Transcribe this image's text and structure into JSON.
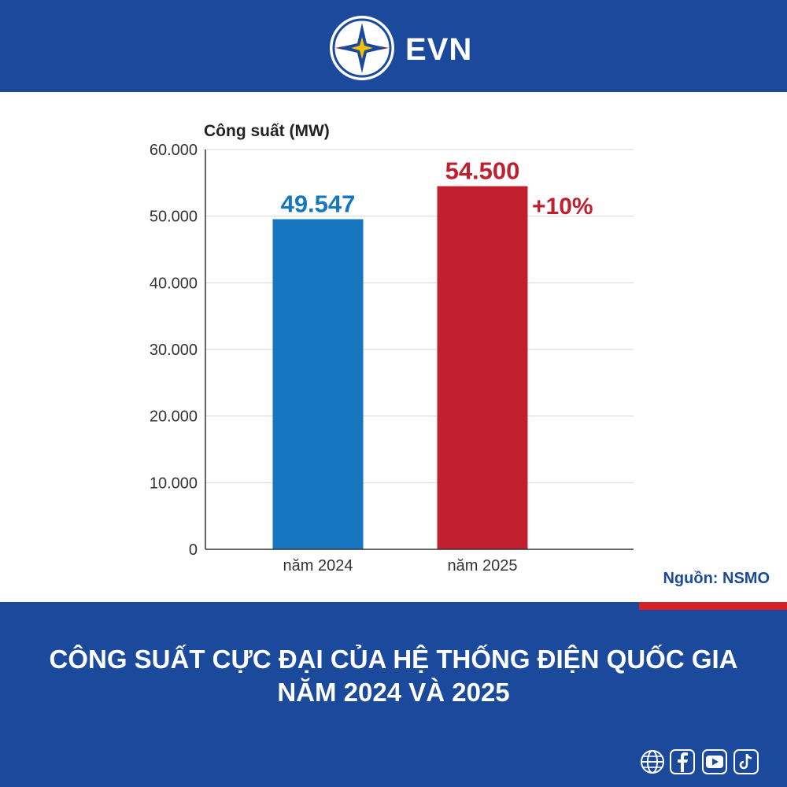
{
  "header": {
    "brand": "EVN"
  },
  "chart_data": {
    "type": "bar",
    "ylabel": "Công suất (MW)",
    "categories": [
      "năm 2024",
      "năm 2025"
    ],
    "values": [
      49547,
      54500
    ],
    "value_labels": [
      "49.547",
      "54.500"
    ],
    "colors": [
      "#1776c0",
      "#c01f2e"
    ],
    "annotation": "+10%",
    "ylim": [
      0,
      60000
    ],
    "yticks": [
      0,
      10000,
      20000,
      30000,
      40000,
      50000,
      60000
    ],
    "ytick_labels": [
      "0",
      "10.000",
      "20.000",
      "30.000",
      "40.000",
      "50.000",
      "60.000"
    ],
    "grid": true
  },
  "source": "Nguồn: NSMO",
  "title": {
    "line1": "CÔNG SUẤT CỰC ĐẠI CỦA HỆ THỐNG ĐIỆN QUỐC GIA",
    "line2": "NĂM 2024 VÀ 2025"
  },
  "social": [
    "globe-icon",
    "facebook-icon",
    "youtube-icon",
    "tiktok-icon"
  ],
  "colors": {
    "brand_blue": "#1b4a9c",
    "accent_red": "#d42027"
  }
}
